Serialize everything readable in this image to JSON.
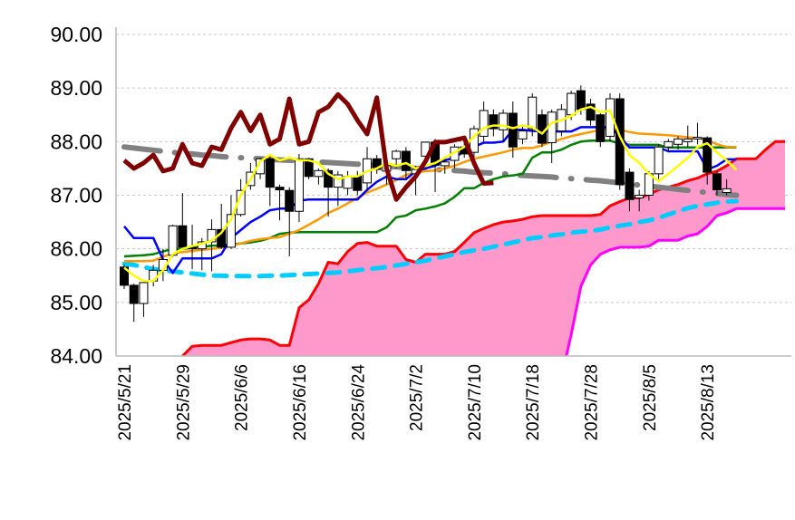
{
  "chart_data": {
    "type": "candlestick",
    "title": "",
    "ylim": [
      84.0,
      90.0
    ],
    "yticks": [
      "84.00",
      "85.00",
      "86.00",
      "87.00",
      "88.00",
      "89.00",
      "90.00"
    ],
    "ytick_values": [
      84,
      85,
      86,
      87,
      88,
      89,
      90
    ],
    "xticks": [
      {
        "index": 0,
        "label": "2025/5/21"
      },
      {
        "index": 6,
        "label": "2025/5/29"
      },
      {
        "index": 12,
        "label": "2025/6/6"
      },
      {
        "index": 18,
        "label": "2025/6/16"
      },
      {
        "index": 24,
        "label": "2025/6/24"
      },
      {
        "index": 30,
        "label": "2025/7/2"
      },
      {
        "index": 36,
        "label": "2025/7/10"
      },
      {
        "index": 42,
        "label": "2025/7/18"
      },
      {
        "index": 48,
        "label": "2025/7/28"
      },
      {
        "index": 54,
        "label": "2025/8/5"
      },
      {
        "index": 60,
        "label": "2025/8/13"
      }
    ],
    "x_slots": 69,
    "grid": true,
    "candles": [
      [
        85.66,
        85.7,
        85.25,
        85.32
      ],
      [
        85.32,
        85.35,
        84.64,
        84.98
      ],
      [
        84.98,
        85.4,
        84.73,
        85.37
      ],
      [
        85.4,
        85.7,
        85.3,
        85.6
      ],
      [
        85.6,
        86.0,
        85.4,
        85.8
      ],
      [
        85.88,
        86.45,
        85.85,
        86.43
      ],
      [
        86.43,
        87.04,
        86.0,
        86.03
      ],
      [
        86.03,
        86.45,
        85.62,
        86.0
      ],
      [
        86.0,
        86.2,
        85.6,
        86.13
      ],
      [
        86.13,
        86.55,
        85.58,
        86.36
      ],
      [
        86.36,
        86.84,
        86.0,
        86.03
      ],
      [
        86.03,
        87.0,
        86.0,
        86.64
      ],
      [
        86.64,
        87.3,
        86.6,
        87.09
      ],
      [
        87.18,
        87.6,
        87.1,
        87.43
      ],
      [
        87.4,
        87.7,
        87.3,
        87.68
      ],
      [
        87.68,
        87.75,
        86.8,
        87.15
      ],
      [
        87.15,
        87.2,
        86.53,
        87.1
      ],
      [
        87.09,
        87.15,
        85.86,
        86.7
      ],
      [
        86.7,
        87.77,
        86.5,
        87.68
      ],
      [
        87.68,
        87.7,
        87.3,
        87.35
      ],
      [
        87.35,
        87.5,
        87.2,
        87.46
      ],
      [
        87.46,
        87.5,
        86.6,
        87.15
      ],
      [
        87.15,
        87.45,
        86.8,
        87.38
      ],
      [
        87.13,
        87.45,
        87.0,
        87.35
      ],
      [
        87.36,
        87.45,
        87.0,
        87.09
      ],
      [
        87.23,
        87.9,
        87.1,
        87.68
      ],
      [
        87.68,
        87.75,
        87.4,
        87.48
      ],
      [
        87.45,
        87.6,
        87.2,
        87.55
      ],
      [
        87.68,
        87.85,
        87.5,
        87.82
      ],
      [
        87.82,
        87.9,
        87.3,
        87.46
      ],
      [
        87.4,
        87.55,
        87.0,
        87.48
      ],
      [
        87.73,
        88.0,
        87.6,
        87.99
      ],
      [
        87.99,
        88.05,
        87.06,
        87.56
      ],
      [
        87.55,
        87.7,
        87.4,
        87.62
      ],
      [
        87.65,
        87.95,
        87.5,
        87.9
      ],
      [
        87.9,
        88.0,
        87.7,
        87.77
      ],
      [
        87.8,
        88.3,
        87.7,
        88.24
      ],
      [
        88.1,
        88.75,
        88.0,
        88.58
      ],
      [
        88.5,
        88.6,
        88.1,
        88.24
      ],
      [
        88.22,
        88.6,
        88.0,
        88.53
      ],
      [
        88.53,
        88.75,
        87.7,
        87.9
      ],
      [
        88.05,
        88.3,
        87.95,
        88.2
      ],
      [
        88.24,
        88.9,
        88.1,
        88.83
      ],
      [
        88.5,
        88.6,
        87.9,
        87.97
      ],
      [
        87.98,
        88.6,
        87.6,
        88.55
      ],
      [
        88.2,
        88.7,
        88.1,
        88.6
      ],
      [
        88.5,
        88.95,
        88.4,
        88.9
      ],
      [
        88.95,
        89.05,
        88.5,
        88.6
      ],
      [
        88.7,
        88.8,
        88.3,
        88.4
      ],
      [
        88.5,
        88.55,
        87.9,
        88.0
      ],
      [
        88.1,
        88.9,
        88.0,
        88.8
      ],
      [
        88.8,
        88.9,
        87.1,
        87.2
      ],
      [
        87.43,
        87.5,
        86.7,
        86.92
      ],
      [
        86.95,
        87.1,
        86.7,
        87.0
      ],
      [
        87.0,
        87.45,
        86.9,
        87.4
      ],
      [
        87.4,
        87.95,
        87.3,
        87.9
      ],
      [
        87.9,
        88.05,
        87.8,
        88.0
      ],
      [
        87.95,
        88.1,
        87.85,
        88.05
      ],
      [
        88.0,
        88.3,
        87.9,
        88.05
      ],
      [
        88.05,
        88.35,
        87.95,
        88.08
      ],
      [
        88.07,
        88.1,
        87.2,
        87.43
      ],
      [
        87.4,
        87.45,
        87.0,
        87.1
      ],
      [
        87.05,
        87.3,
        87.0,
        87.12
      ]
    ],
    "series": [
      {
        "name": "senkou_a",
        "color": "#ff0000",
        "start": 6,
        "values": [
          84.0,
          84.18,
          84.2,
          84.2,
          84.2,
          84.25,
          84.3,
          84.32,
          84.32,
          84.3,
          84.2,
          84.2,
          84.9,
          85.05,
          85.35,
          85.75,
          85.72,
          85.95,
          86.1,
          86.12,
          86.05,
          86.05,
          86.05,
          85.8,
          85.75,
          85.9,
          85.9,
          85.9,
          85.95,
          86.12,
          86.3,
          86.38,
          86.45,
          86.5,
          86.52,
          86.55,
          86.6,
          86.62,
          86.62,
          86.62,
          86.62,
          86.62,
          86.62,
          86.64,
          86.8,
          86.88,
          86.95,
          86.95,
          87.02,
          87.1,
          87.15,
          87.2,
          87.27,
          87.32,
          87.4,
          87.45,
          87.55,
          87.68,
          87.68,
          87.68,
          87.85,
          88.0,
          88.0
        ]
      },
      {
        "name": "senkou_b",
        "color": "#ff00ff",
        "start": 45,
        "values": [
          83.6,
          84.4,
          85.3,
          85.7,
          85.9,
          85.98,
          86.03,
          86.03,
          86.03,
          86.05,
          86.16,
          86.16,
          86.16,
          86.24,
          86.28,
          86.42,
          86.62,
          86.67,
          86.75,
          86.75,
          86.75,
          86.75,
          86.75,
          86.75
        ]
      },
      {
        "name": "ma_long_cyan",
        "color": "#00ccff",
        "start": 0,
        "values": [
          85.72,
          85.7,
          85.66,
          85.62,
          85.6,
          85.58,
          85.56,
          85.54,
          85.52,
          85.5,
          85.5,
          85.49,
          85.49,
          85.49,
          85.49,
          85.5,
          85.5,
          85.51,
          85.52,
          85.53,
          85.54,
          85.55,
          85.56,
          85.58,
          85.6,
          85.62,
          85.64,
          85.66,
          85.69,
          85.72,
          85.75,
          85.78,
          85.82,
          85.86,
          85.9,
          85.94,
          85.97,
          86.0,
          86.04,
          86.08,
          86.12,
          86.16,
          86.2,
          86.22,
          86.25,
          86.27,
          86.3,
          86.32,
          86.33,
          86.36,
          86.4,
          86.43,
          86.46,
          86.5,
          86.53,
          86.58,
          86.64,
          86.7,
          86.76,
          86.8,
          86.83,
          86.86,
          86.88,
          86.89
        ]
      },
      {
        "name": "ma_gray",
        "color": "#808080",
        "start": 0,
        "values": [
          87.9,
          87.88,
          87.86,
          87.84,
          87.82,
          87.8,
          87.78,
          87.77,
          87.75,
          87.74,
          87.72,
          87.71,
          87.7,
          87.69,
          87.68,
          87.67,
          87.66,
          87.65,
          87.64,
          87.63,
          87.62,
          87.61,
          87.6,
          87.59,
          87.58,
          87.57,
          87.56,
          87.54,
          87.53,
          87.52,
          87.5,
          87.49,
          87.48,
          87.47,
          87.46,
          87.45,
          87.43,
          87.42,
          87.41,
          87.4,
          87.38,
          87.37,
          87.36,
          87.35,
          87.34,
          87.32,
          87.31,
          87.3,
          87.28,
          87.27,
          87.25,
          87.23,
          87.21,
          87.19,
          87.17,
          87.15,
          87.13,
          87.11,
          87.09,
          87.07,
          87.05,
          87.03,
          87.01,
          87.0
        ]
      },
      {
        "name": "orange",
        "color": "#ff9900",
        "start": 0,
        "values": [
          85.77,
          85.77,
          85.77,
          85.78,
          85.85,
          85.92,
          85.94,
          85.96,
          85.98,
          86.0,
          86.02,
          86.06,
          86.1,
          86.15,
          86.18,
          86.2,
          86.22,
          86.28,
          86.35,
          86.45,
          86.55,
          86.67,
          86.75,
          86.85,
          86.95,
          87.05,
          87.12,
          87.2,
          87.28,
          87.38,
          87.42,
          87.45,
          87.46,
          87.5,
          87.55,
          87.62,
          87.68,
          87.72,
          87.76,
          87.8,
          87.85,
          87.88,
          87.88,
          87.93,
          88.0,
          88.05,
          88.1,
          88.14,
          88.18,
          88.22,
          88.24,
          88.22,
          88.18,
          88.15,
          88.14,
          88.13,
          88.12,
          88.1,
          88.08,
          88.07,
          88.03,
          87.95,
          87.9,
          87.9
        ]
      },
      {
        "name": "green",
        "color": "#008000",
        "start": 0,
        "values": [
          85.86,
          85.87,
          85.88,
          85.9,
          85.95,
          86.0,
          86.0,
          86.02,
          86.03,
          86.06,
          86.06,
          86.08,
          86.1,
          86.12,
          86.15,
          86.2,
          86.28,
          86.3,
          86.31,
          86.31,
          86.31,
          86.31,
          86.31,
          86.31,
          86.31,
          86.31,
          86.31,
          86.4,
          86.59,
          86.62,
          86.72,
          86.75,
          86.79,
          86.85,
          86.97,
          87.13,
          87.13,
          87.23,
          87.3,
          87.35,
          87.37,
          87.4,
          87.7,
          87.8,
          87.8,
          87.85,
          87.94,
          88.0,
          88.02,
          88.02,
          88.02,
          87.96,
          87.94,
          87.94,
          87.94,
          87.94,
          87.89,
          87.89,
          87.89,
          87.89,
          87.89,
          87.89,
          87.89,
          87.89
        ]
      },
      {
        "name": "blue",
        "color": "#0000ff",
        "start": 0,
        "values": [
          86.42,
          86.2,
          86.2,
          86.2,
          85.8,
          85.55,
          85.82,
          85.82,
          85.82,
          85.82,
          85.9,
          86.2,
          86.35,
          86.5,
          86.6,
          86.72,
          86.75,
          86.75,
          86.9,
          86.92,
          86.92,
          86.92,
          86.92,
          86.92,
          86.92,
          87.1,
          87.25,
          87.35,
          87.3,
          87.3,
          87.45,
          87.5,
          87.55,
          87.65,
          87.7,
          87.82,
          87.9,
          87.98,
          87.98,
          88.0,
          88.22,
          88.22,
          88.2,
          88.19,
          88.19,
          88.19,
          88.19,
          88.27,
          88.27,
          88.27,
          88.27,
          88.1,
          87.89,
          87.89,
          87.89,
          87.89,
          87.82,
          87.82,
          87.82,
          87.82,
          87.48,
          87.55,
          87.67,
          87.67
        ]
      },
      {
        "name": "yellow",
        "color": "#ffff00",
        "start": 0,
        "values": [
          85.65,
          85.5,
          85.4,
          85.4,
          85.6,
          85.9,
          86.0,
          86.05,
          86.1,
          86.15,
          86.3,
          86.55,
          87.0,
          87.3,
          87.63,
          87.75,
          87.65,
          87.7,
          87.65,
          87.65,
          87.6,
          87.4,
          87.3,
          87.35,
          87.35,
          87.45,
          87.5,
          87.6,
          87.55,
          87.6,
          87.5,
          87.55,
          87.6,
          87.7,
          87.8,
          87.9,
          88.1,
          88.25,
          88.3,
          88.3,
          88.25,
          88.3,
          88.27,
          88.15,
          88.35,
          88.4,
          88.48,
          88.6,
          88.65,
          88.55,
          88.58,
          88.1,
          87.75,
          87.6,
          87.4,
          87.26,
          87.4,
          87.55,
          87.7,
          87.9,
          87.97,
          87.8,
          87.65,
          87.47
        ]
      },
      {
        "name": "chikou",
        "color": "#800000",
        "start": 0,
        "values": [
          87.65,
          87.5,
          87.6,
          87.75,
          87.45,
          87.5,
          87.95,
          87.6,
          87.55,
          87.9,
          87.85,
          88.25,
          88.55,
          88.2,
          88.5,
          87.95,
          88.05,
          88.8,
          87.95,
          88.0,
          88.55,
          88.65,
          88.88,
          88.7,
          88.4,
          88.14,
          88.82,
          87.5,
          86.92,
          87.15,
          87.35,
          87.63,
          87.99,
          87.99,
          88.03,
          88.07,
          87.6,
          87.22,
          87.23
        ]
      }
    ],
    "cloud_color": "#ff99cc"
  }
}
